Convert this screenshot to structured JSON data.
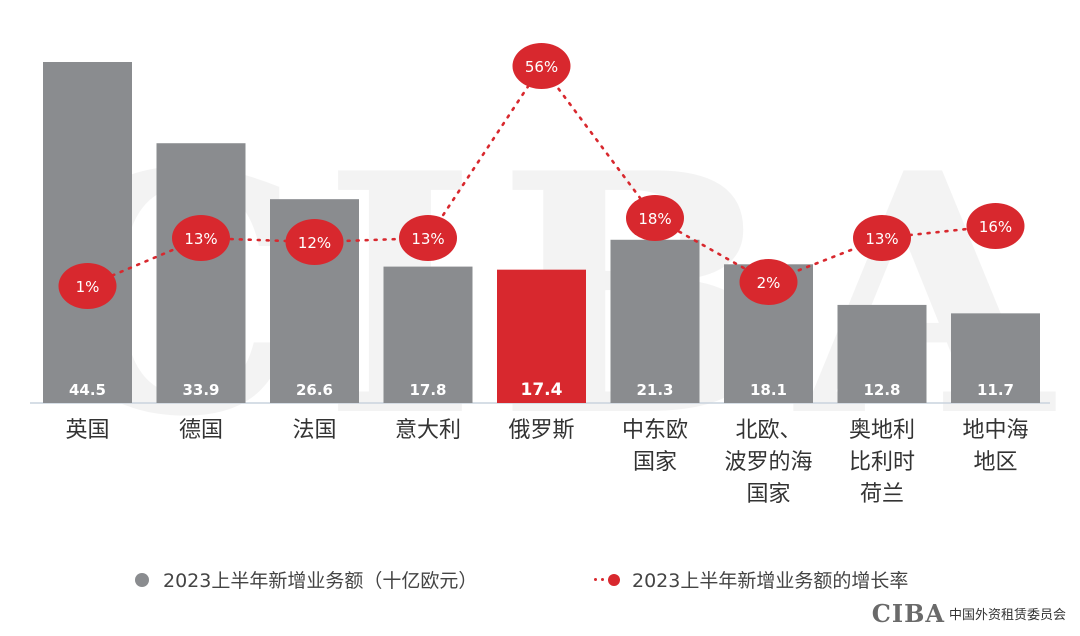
{
  "chart_data": {
    "type": "bar",
    "categories": [
      [
        "英国"
      ],
      [
        "德国"
      ],
      [
        "法国"
      ],
      [
        "意大利"
      ],
      [
        "俄罗斯"
      ],
      [
        "中东欧",
        "国家"
      ],
      [
        "北欧、",
        "波罗的海",
        "国家"
      ],
      [
        "奥地利",
        "比利时",
        "荷兰"
      ],
      [
        "地中海",
        "地区"
      ]
    ],
    "series": [
      {
        "name": "2023上半年新增业务额（十亿欧元）",
        "type": "bar",
        "values": [
          44.5,
          33.9,
          26.6,
          17.8,
          17.4,
          21.3,
          18.1,
          12.8,
          11.7
        ],
        "labels": [
          "44.5",
          "33.9",
          "26.6",
          "17.8",
          "17.4",
          "21.3",
          "18.1",
          "12.8",
          "11.7"
        ],
        "highlight_index": 4
      },
      {
        "name": "2023上半年新增业务额的增长率",
        "type": "line",
        "values": [
          1,
          13,
          12,
          13,
          56,
          18,
          2,
          13,
          16
        ],
        "labels": [
          "1%",
          "13%",
          "12%",
          "13%",
          "56%",
          "18%",
          "2%",
          "13%",
          "16%"
        ]
      }
    ],
    "colors": {
      "bar": "#8a8c8f",
      "highlight": "#d8282e",
      "line": "#d8282e"
    }
  },
  "watermark": "CIBA",
  "logo": {
    "mark": "CIBA",
    "text": "中国外资租赁委员会"
  }
}
